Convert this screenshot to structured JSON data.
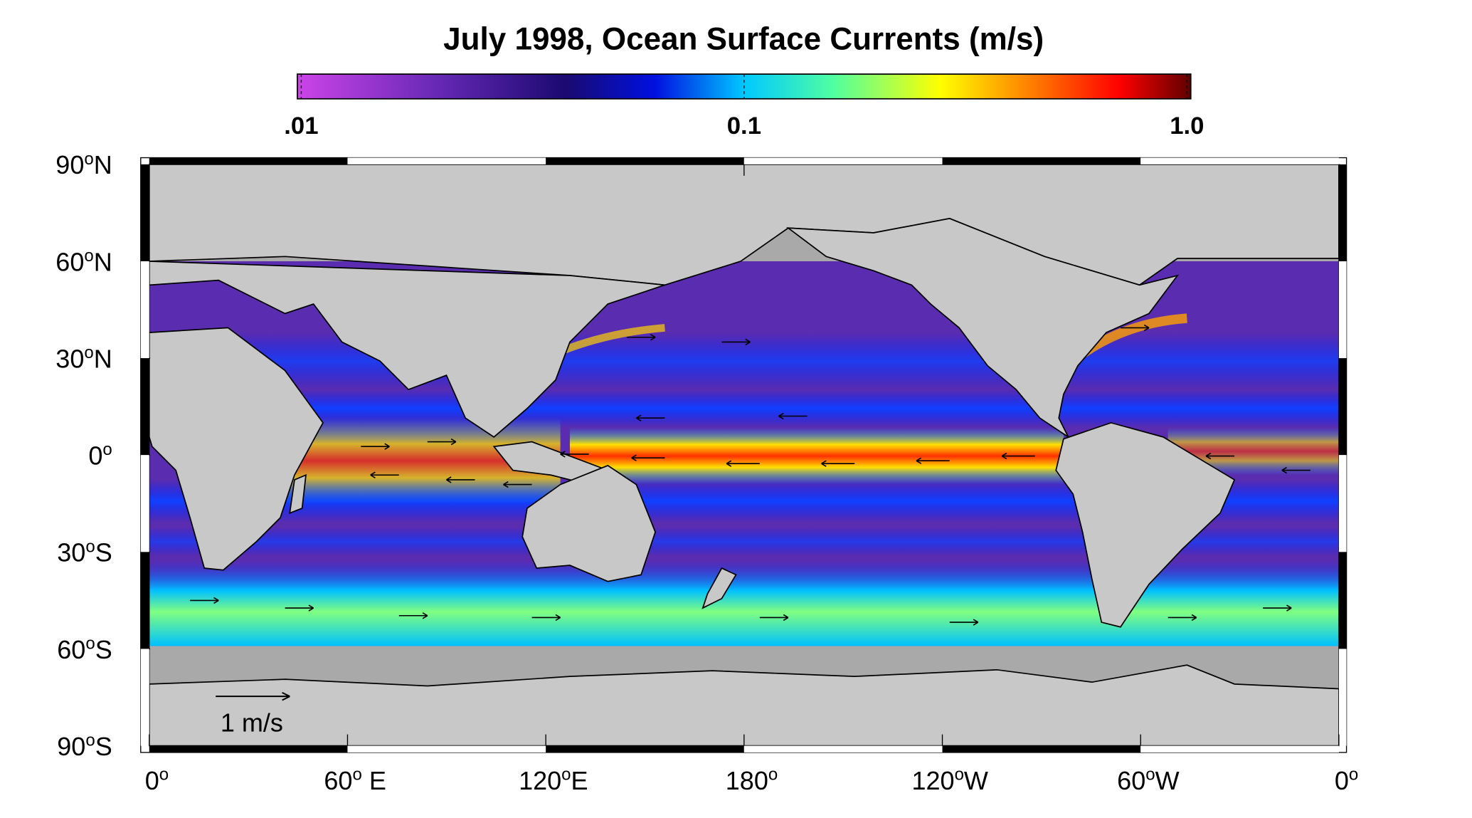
{
  "title": "July 1998, Ocean Surface Currents  (m/s)",
  "colorbar": {
    "scale": "log",
    "lim": [
      0.0098,
      1.02
    ],
    "ticks": [
      {
        "value": 0.01,
        "label": ".01"
      },
      0.1,
      {
        "value": 1,
        "label": "1.0"
      }
    ]
  },
  "lat_ticks": [
    {
      "value": 90,
      "num": "90",
      "sup": "o",
      "suffix": "N"
    },
    {
      "value": 60,
      "num": "60",
      "sup": "o",
      "suffix": "N"
    },
    {
      "value": 30,
      "num": "30",
      "sup": "o",
      "suffix": "N"
    },
    {
      "value": 0,
      "num": "0",
      "sup": "o"
    },
    {
      "value": -30,
      "num": "30",
      "sup": "o",
      "suffix": "S"
    },
    {
      "value": -60,
      "num": "60",
      "sup": "o",
      "suffix": "S"
    },
    {
      "value": -90,
      "num": "90",
      "sup": "o",
      "suffix": "S"
    }
  ],
  "lon_ticks": [
    {
      "value": 0,
      "num": "0",
      "sup": "o"
    },
    {
      "value": 60,
      "num": "60",
      "sup": "o",
      "suffix": " E"
    },
    {
      "value": 120,
      "num": "120",
      "sup": "o",
      "suffix": "E"
    },
    {
      "value": 180,
      "num": "180",
      "sup": "o"
    },
    {
      "value": 240,
      "num": "120",
      "sup": "o",
      "suffix": "W"
    },
    {
      "value": 300,
      "num": "60",
      "sup": "o",
      "suffix": "W"
    },
    {
      "value": 360,
      "num": "0",
      "sup": "o"
    }
  ],
  "scale_label": "1 m/s"
}
